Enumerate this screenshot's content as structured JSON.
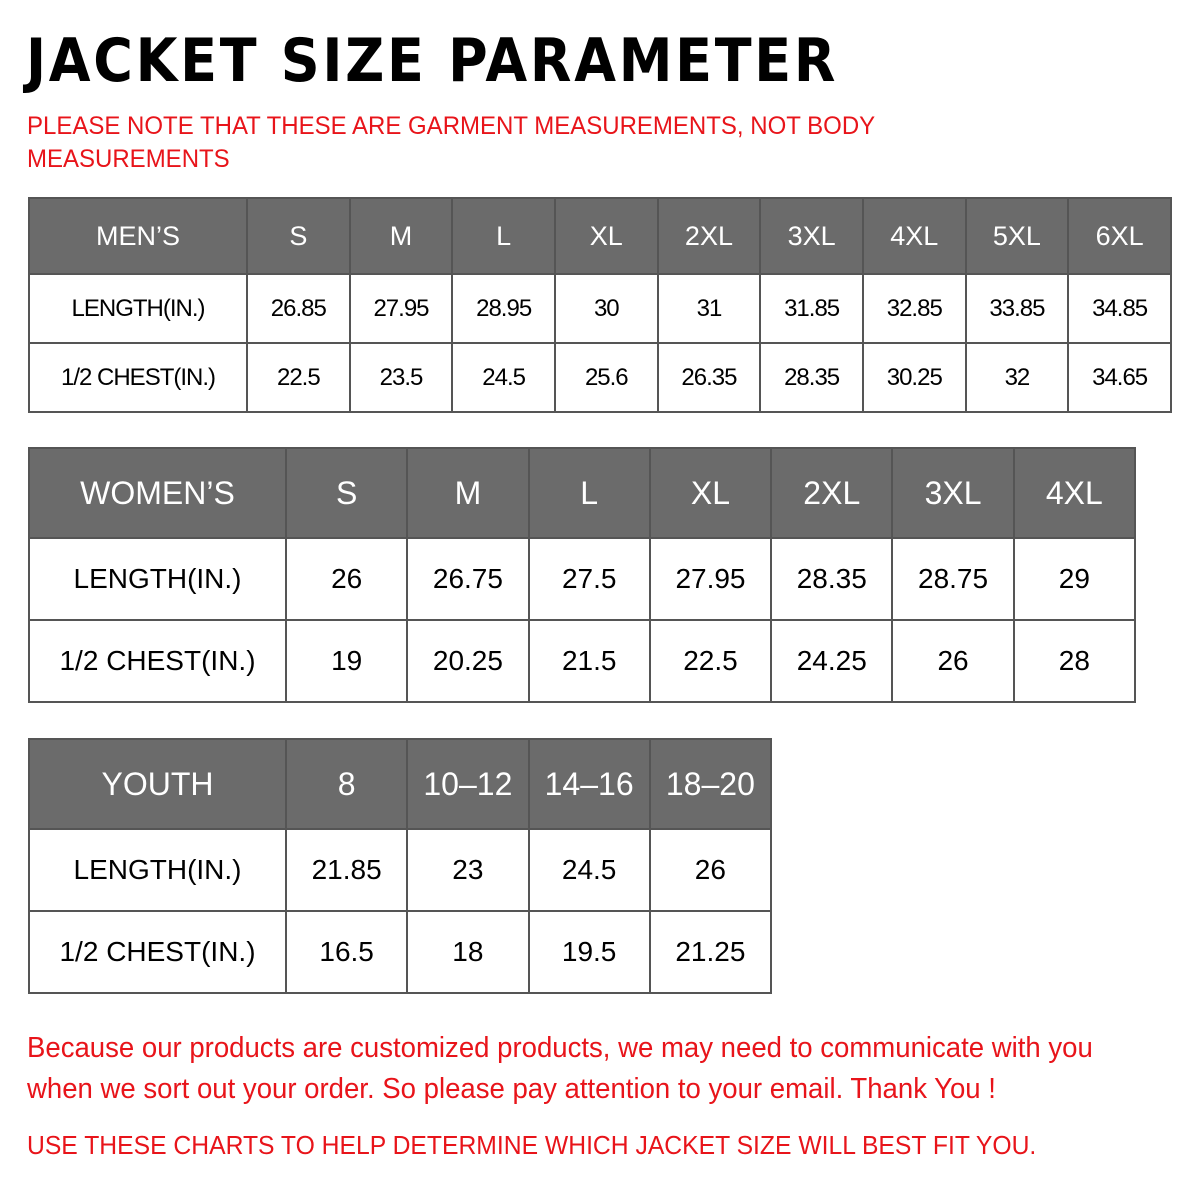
{
  "title": "JACKET  SIZE  PARAMETER",
  "note": "PLEASE NOTE THAT THESE ARE GARMENT MEASUREMENTS, NOT BODY MEASUREMENTS",
  "colors": {
    "header_bg": "#6b6b6b",
    "accent_red": "#e8141a"
  },
  "tables": [
    {
      "id": "men",
      "header": [
        "MEN’S",
        "S",
        "M",
        "L",
        "XL",
        "2XL",
        "3XL",
        "4XL",
        "5XL",
        "6XL"
      ],
      "rows": [
        [
          "LENGTH(IN.)",
          "26.85",
          "27.95",
          "28.95",
          "30",
          "31",
          "31.85",
          "32.85",
          "33.85",
          "34.85"
        ],
        [
          "1/2 CHEST(IN.)",
          "22.5",
          "23.5",
          "24.5",
          "25.6",
          "26.35",
          "28.35",
          "30.25",
          "32",
          "34.65"
        ]
      ]
    },
    {
      "id": "women",
      "header": [
        "WOMEN’S",
        "S",
        "M",
        "L",
        "XL",
        "2XL",
        "3XL",
        "4XL"
      ],
      "rows": [
        [
          "LENGTH(IN.)",
          "26",
          "26.75",
          "27.5",
          "27.95",
          "28.35",
          "28.75",
          "29"
        ],
        [
          "1/2 CHEST(IN.)",
          "19",
          "20.25",
          "21.5",
          "22.5",
          "24.25",
          "26",
          "28"
        ]
      ]
    },
    {
      "id": "youth",
      "header": [
        "YOUTH",
        "8",
        "10–12",
        "14–16",
        "18–20"
      ],
      "rows": [
        [
          "LENGTH(IN.)",
          "21.85",
          "23",
          "24.5",
          "26"
        ],
        [
          "1/2 CHEST(IN.)",
          "16.5",
          "18",
          "19.5",
          "21.25"
        ]
      ]
    }
  ],
  "footer_message": "Because our products are customized products, we may need to communicate with you when we sort out your order. So please pay attention to your email. Thank You !",
  "footer_instruction": "USE THESE CHARTS TO HELP DETERMINE WHICH JACKET SIZE WILL BEST FIT YOU."
}
